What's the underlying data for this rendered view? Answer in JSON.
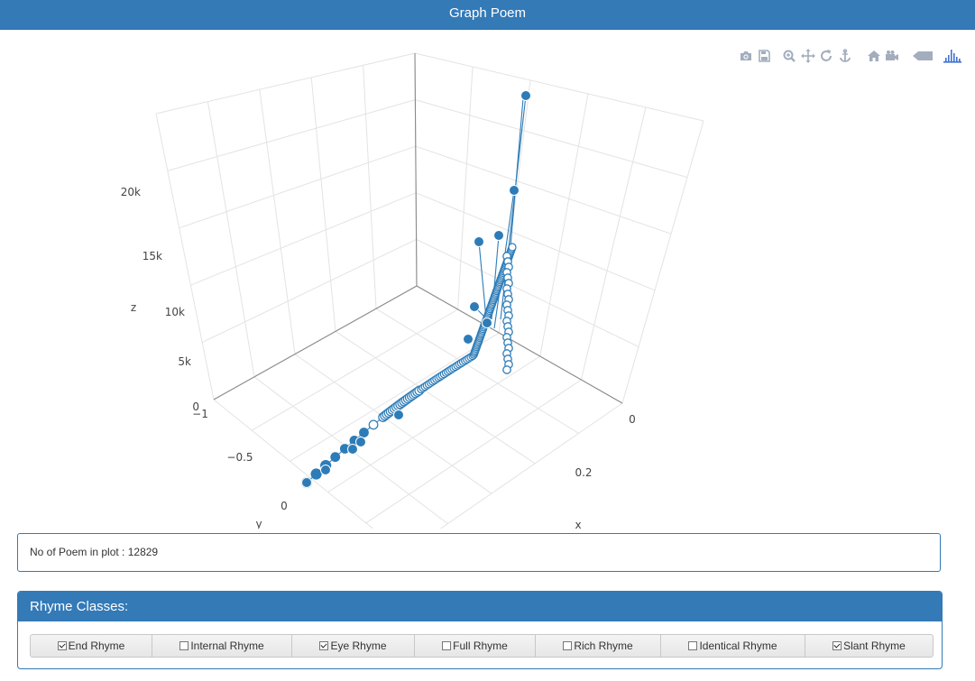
{
  "header": {
    "title": "Graph Poem"
  },
  "modebar": {
    "buttons": [
      {
        "name": "camera-icon"
      },
      {
        "name": "save-icon"
      },
      {
        "name": "zoom-icon"
      },
      {
        "name": "pan-icon"
      },
      {
        "name": "orbit-rotation-icon"
      },
      {
        "name": "turntable-rotation-icon"
      },
      {
        "name": "home-icon"
      },
      {
        "name": "video-camera-icon"
      },
      {
        "name": "hover-tag-icon"
      },
      {
        "name": "plotly-logo-icon"
      }
    ],
    "icon_color": "#a3adbd",
    "logo_color": "#3f72d2"
  },
  "chart_data": {
    "type": "scatter",
    "mode": "lines+markers",
    "dimensions": 3,
    "marker_color": "#2d7cb8",
    "line_color": "#2d7cb8",
    "axes": {
      "x": {
        "title": "x",
        "ticks": [
          "0",
          "0.2"
        ]
      },
      "y": {
        "title": "y",
        "ticks": [
          "−1",
          "−0.5",
          "0"
        ]
      },
      "z": {
        "title": "z",
        "ticks": [
          "0",
          "5k",
          "10k",
          "15k",
          "20k"
        ]
      }
    }
  },
  "count_panel": {
    "label": "No of Poem in plot :",
    "value": "12829"
  },
  "rhyme_panel": {
    "title": "Rhyme Classes:",
    "classes": [
      {
        "label": "End Rhyme",
        "checked": true
      },
      {
        "label": "Internal Rhyme",
        "checked": false
      },
      {
        "label": "Eye Rhyme",
        "checked": true
      },
      {
        "label": "Full Rhyme",
        "checked": false
      },
      {
        "label": "Rich Rhyme",
        "checked": false
      },
      {
        "label": "Identical Rhyme",
        "checked": false
      },
      {
        "label": "Slant Rhyme",
        "checked": true
      }
    ]
  }
}
